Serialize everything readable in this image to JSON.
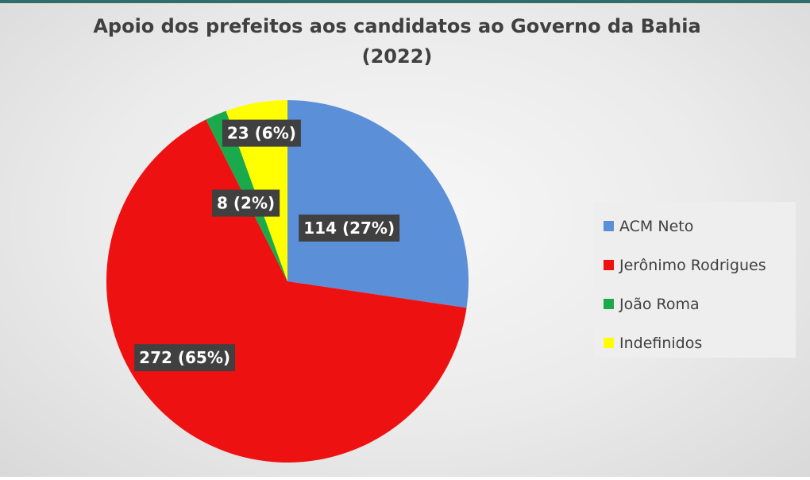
{
  "chart_data": {
    "type": "pie",
    "title_lines": [
      "Apoio dos prefeitos aos candidatos ao Governo da Bahia",
      "(2022)"
    ],
    "categories": [
      "ACM Neto",
      "Jerônimo Rodrigues",
      "João Roma",
      "Indefinidos"
    ],
    "values": [
      114,
      272,
      8,
      23
    ],
    "percent_labels": [
      "27%",
      "65%",
      "2%",
      "6%"
    ],
    "data_labels": [
      "114 (27%)",
      "272 (65%)",
      "8 (2%)",
      "23 (6%)"
    ],
    "colors": [
      "#5b8fd8",
      "#ee1111",
      "#1aaa4b",
      "#ffff00"
    ],
    "legend_position": "right"
  }
}
